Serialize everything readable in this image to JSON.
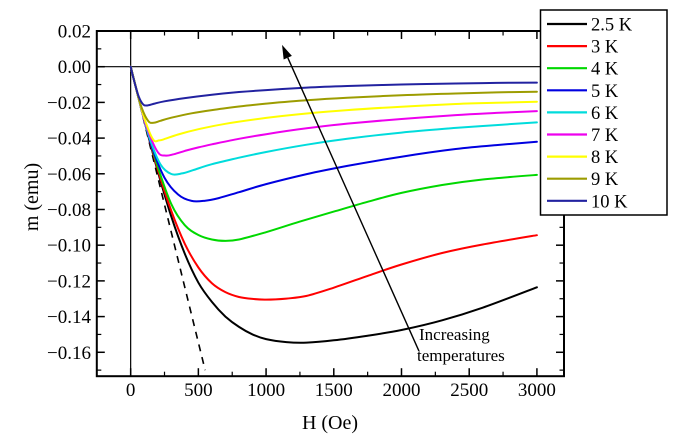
{
  "chart_data": {
    "type": "line",
    "title": "",
    "xlabel": "H (Oe)",
    "ylabel": "m (emu)",
    "xlim": [
      -250,
      3200
    ],
    "ylim": [
      -0.1734,
      0.02
    ],
    "grid": false,
    "x_major_ticks": [
      0,
      500,
      1000,
      1500,
      2000,
      2500,
      3000
    ],
    "x_tick_labels": [
      "0",
      "500",
      "1000",
      "1500",
      "2000",
      "2500",
      "3000"
    ],
    "x_minor_ticks": [
      250,
      750,
      1250,
      1750,
      2250,
      2750
    ],
    "y_major_ticks": [
      0.02,
      0.0,
      -0.02,
      -0.04,
      -0.06,
      -0.08,
      -0.1,
      -0.12,
      -0.14,
      -0.16
    ],
    "y_tick_labels": [
      "0.02",
      "0.00",
      "−0.02",
      "−0.04",
      "−0.06",
      "−0.08",
      "−0.10",
      "−0.12",
      "−0.14",
      "−0.16"
    ],
    "y_minor_ticks": [
      0.01,
      -0.01,
      -0.03,
      -0.05,
      -0.07,
      -0.09,
      -0.11,
      -0.13,
      -0.15,
      -0.17
    ],
    "zero_lines": true,
    "legend": {
      "position": "top-right"
    },
    "series": [
      {
        "name": "2.5 K",
        "color": "#000000",
        "points": [
          [
            0,
            0
          ],
          [
            100,
            -0.03
          ],
          [
            200,
            -0.0585
          ],
          [
            300,
            -0.084
          ],
          [
            400,
            -0.1048
          ],
          [
            500,
            -0.121
          ],
          [
            600,
            -0.1318
          ],
          [
            700,
            -0.14
          ],
          [
            800,
            -0.1458
          ],
          [
            900,
            -0.15
          ],
          [
            1000,
            -0.1526
          ],
          [
            1150,
            -0.1543
          ],
          [
            1300,
            -0.1546
          ],
          [
            1500,
            -0.1533
          ],
          [
            1750,
            -0.1507
          ],
          [
            2000,
            -0.1475
          ],
          [
            2300,
            -0.1421
          ],
          [
            2600,
            -0.135
          ],
          [
            3000,
            -0.1236
          ]
        ]
      },
      {
        "name": "3 K",
        "color": "#FF0000",
        "points": [
          [
            0,
            0
          ],
          [
            100,
            -0.0295
          ],
          [
            200,
            -0.0575
          ],
          [
            300,
            -0.0808
          ],
          [
            400,
            -0.0992
          ],
          [
            500,
            -0.1125
          ],
          [
            600,
            -0.1213
          ],
          [
            700,
            -0.1263
          ],
          [
            800,
            -0.129
          ],
          [
            900,
            -0.1301
          ],
          [
            1000,
            -0.1305
          ],
          [
            1150,
            -0.1299
          ],
          [
            1300,
            -0.1284
          ],
          [
            1500,
            -0.1238
          ],
          [
            1750,
            -0.1172
          ],
          [
            2000,
            -0.1108
          ],
          [
            2300,
            -0.1044
          ],
          [
            2600,
            -0.0996
          ],
          [
            3000,
            -0.0944
          ]
        ]
      },
      {
        "name": "4 K",
        "color": "#00D800",
        "points": [
          [
            0,
            0
          ],
          [
            100,
            -0.0293
          ],
          [
            200,
            -0.056
          ],
          [
            300,
            -0.077
          ],
          [
            400,
            -0.0888
          ],
          [
            500,
            -0.0943
          ],
          [
            600,
            -0.0968
          ],
          [
            700,
            -0.0976
          ],
          [
            800,
            -0.0968
          ],
          [
            1000,
            -0.0927
          ],
          [
            1250,
            -0.0868
          ],
          [
            1500,
            -0.0812
          ],
          [
            1750,
            -0.0757
          ],
          [
            2000,
            -0.0707
          ],
          [
            2300,
            -0.0663
          ],
          [
            2600,
            -0.0632
          ],
          [
            3000,
            -0.0606
          ]
        ]
      },
      {
        "name": "5 K",
        "color": "#0000E0",
        "points": [
          [
            0,
            0
          ],
          [
            80,
            -0.024
          ],
          [
            160,
            -0.0456
          ],
          [
            250,
            -0.0622
          ],
          [
            350,
            -0.0716
          ],
          [
            450,
            -0.0752
          ],
          [
            550,
            -0.0751
          ],
          [
            650,
            -0.0736
          ],
          [
            800,
            -0.0703
          ],
          [
            1000,
            -0.0658
          ],
          [
            1300,
            -0.0602
          ],
          [
            1600,
            -0.0556
          ],
          [
            2000,
            -0.0504
          ],
          [
            2400,
            -0.0461
          ],
          [
            2700,
            -0.0439
          ],
          [
            3000,
            -0.0421
          ]
        ]
      },
      {
        "name": "6 K",
        "color": "#00DCDC",
        "points": [
          [
            0,
            0
          ],
          [
            70,
            -0.021
          ],
          [
            140,
            -0.04
          ],
          [
            220,
            -0.0547
          ],
          [
            300,
            -0.0601
          ],
          [
            380,
            -0.0598
          ],
          [
            460,
            -0.058
          ],
          [
            600,
            -0.0546
          ],
          [
            800,
            -0.051
          ],
          [
            1000,
            -0.0478
          ],
          [
            1300,
            -0.0437
          ],
          [
            1600,
            -0.0404
          ],
          [
            2000,
            -0.0369
          ],
          [
            2400,
            -0.0343
          ],
          [
            2700,
            -0.0327
          ],
          [
            3000,
            -0.0312
          ]
        ]
      },
      {
        "name": "7 K",
        "color": "#EE00EE",
        "points": [
          [
            0,
            0
          ],
          [
            60,
            -0.018
          ],
          [
            120,
            -0.0342
          ],
          [
            200,
            -0.0478
          ],
          [
            260,
            -0.0498
          ],
          [
            320,
            -0.049
          ],
          [
            400,
            -0.0472
          ],
          [
            500,
            -0.0452
          ],
          [
            600,
            -0.0435
          ],
          [
            800,
            -0.0404
          ],
          [
            1000,
            -0.0378
          ],
          [
            1300,
            -0.0345
          ],
          [
            1600,
            -0.0319
          ],
          [
            2000,
            -0.0293
          ],
          [
            2400,
            -0.0271
          ],
          [
            2700,
            -0.0259
          ],
          [
            3000,
            -0.0249
          ]
        ]
      },
      {
        "name": "8 K",
        "color": "#FFFF00",
        "points": [
          [
            0,
            0
          ],
          [
            50,
            -0.015
          ],
          [
            100,
            -0.0287
          ],
          [
            165,
            -0.0407
          ],
          [
            210,
            -0.0413
          ],
          [
            260,
            -0.0403
          ],
          [
            350,
            -0.038
          ],
          [
            500,
            -0.035
          ],
          [
            700,
            -0.032
          ],
          [
            1000,
            -0.0287
          ],
          [
            1300,
            -0.0262
          ],
          [
            1600,
            -0.0243
          ],
          [
            2000,
            -0.0224
          ],
          [
            2400,
            -0.0209
          ],
          [
            2700,
            -0.0202
          ],
          [
            3000,
            -0.0196
          ]
        ]
      },
      {
        "name": "9 K",
        "color": "#9C9C00",
        "points": [
          [
            0,
            0
          ],
          [
            40,
            -0.0122
          ],
          [
            80,
            -0.0228
          ],
          [
            130,
            -0.0305
          ],
          [
            170,
            -0.0314
          ],
          [
            220,
            -0.0303
          ],
          [
            300,
            -0.0286
          ],
          [
            450,
            -0.0261
          ],
          [
            600,
            -0.0243
          ],
          [
            800,
            -0.0223
          ],
          [
            1000,
            -0.0207
          ],
          [
            1300,
            -0.0188
          ],
          [
            1600,
            -0.0174
          ],
          [
            2000,
            -0.016
          ],
          [
            2400,
            -0.015
          ],
          [
            2700,
            -0.0144
          ],
          [
            3000,
            -0.014
          ]
        ]
      },
      {
        "name": "10 K",
        "color": "#2222A0",
        "points": [
          [
            0,
            0
          ],
          [
            30,
            -0.0092
          ],
          [
            60,
            -0.0168
          ],
          [
            95,
            -0.0213
          ],
          [
            130,
            -0.0216
          ],
          [
            180,
            -0.0206
          ],
          [
            250,
            -0.0194
          ],
          [
            400,
            -0.0176
          ],
          [
            600,
            -0.0157
          ],
          [
            800,
            -0.0142
          ],
          [
            1000,
            -0.0131
          ],
          [
            1300,
            -0.0117
          ],
          [
            1600,
            -0.0108
          ],
          [
            2000,
            -0.01
          ],
          [
            2400,
            -0.0094
          ],
          [
            2700,
            -0.0091
          ],
          [
            3000,
            -0.0089
          ]
        ]
      }
    ],
    "dashed_guide": {
      "description": "initial-slope dashed extrapolation line",
      "color": "#000000",
      "points": [
        [
          0,
          0
        ],
        [
          550,
          -0.17
        ]
      ]
    },
    "annotation": {
      "line1": "Increasing",
      "line2": "temperatures",
      "arrow_from": [
        2129,
        -0.1593
      ],
      "arrow_to": [
        1118,
        0.0122
      ]
    }
  }
}
